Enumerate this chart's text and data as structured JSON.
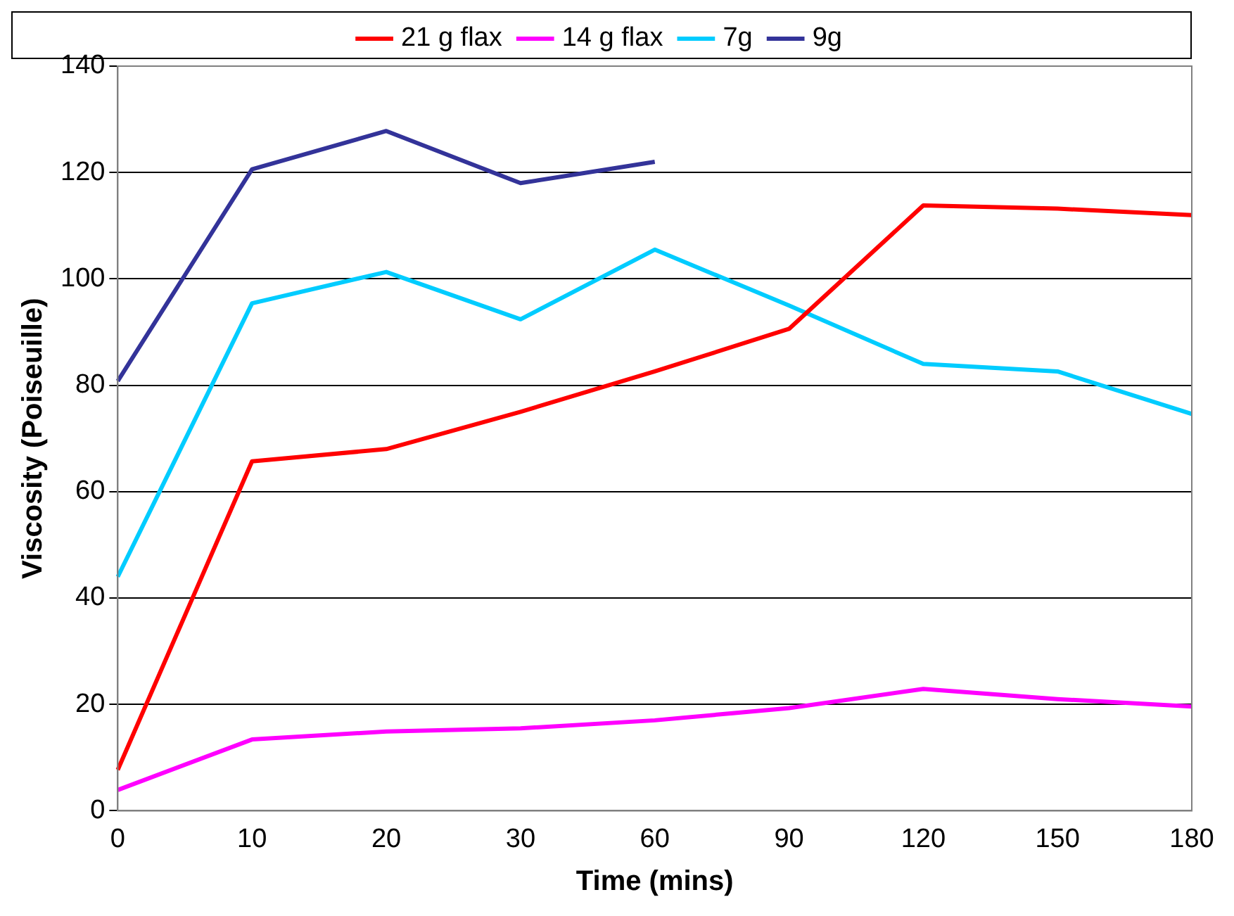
{
  "chart_data": {
    "type": "line",
    "xlabel": "Time (mins)",
    "ylabel": "Viscosity (Poiseuille)",
    "categories": [
      "0",
      "10",
      "20",
      "30",
      "60",
      "90",
      "120",
      "150",
      "180"
    ],
    "series": [
      {
        "name": "21 g flax",
        "color": "#ff0000",
        "values": [
          7.7,
          65.7,
          68,
          75,
          82.6,
          90.6,
          113.8,
          113.2,
          112
        ]
      },
      {
        "name": "14 g flax",
        "color": "#ff00ff",
        "values": [
          3.9,
          13.4,
          14.9,
          15.5,
          17,
          19.3,
          22.9,
          21,
          19.6
        ]
      },
      {
        "name": "7g",
        "color": "#00ccff",
        "values": [
          44,
          95.4,
          101.3,
          92.4,
          105.5,
          95,
          84,
          82.6,
          74.6
        ]
      },
      {
        "name": "9g",
        "color": "#333399",
        "values": [
          80.8,
          120.6,
          127.8,
          118,
          122,
          null,
          null,
          null,
          null
        ]
      }
    ],
    "ylim": [
      0,
      140
    ],
    "yticks": [
      0,
      20,
      40,
      60,
      80,
      100,
      120,
      140
    ],
    "grid": "y",
    "legend": "top",
    "marker": "none",
    "line_style": "solid"
  }
}
